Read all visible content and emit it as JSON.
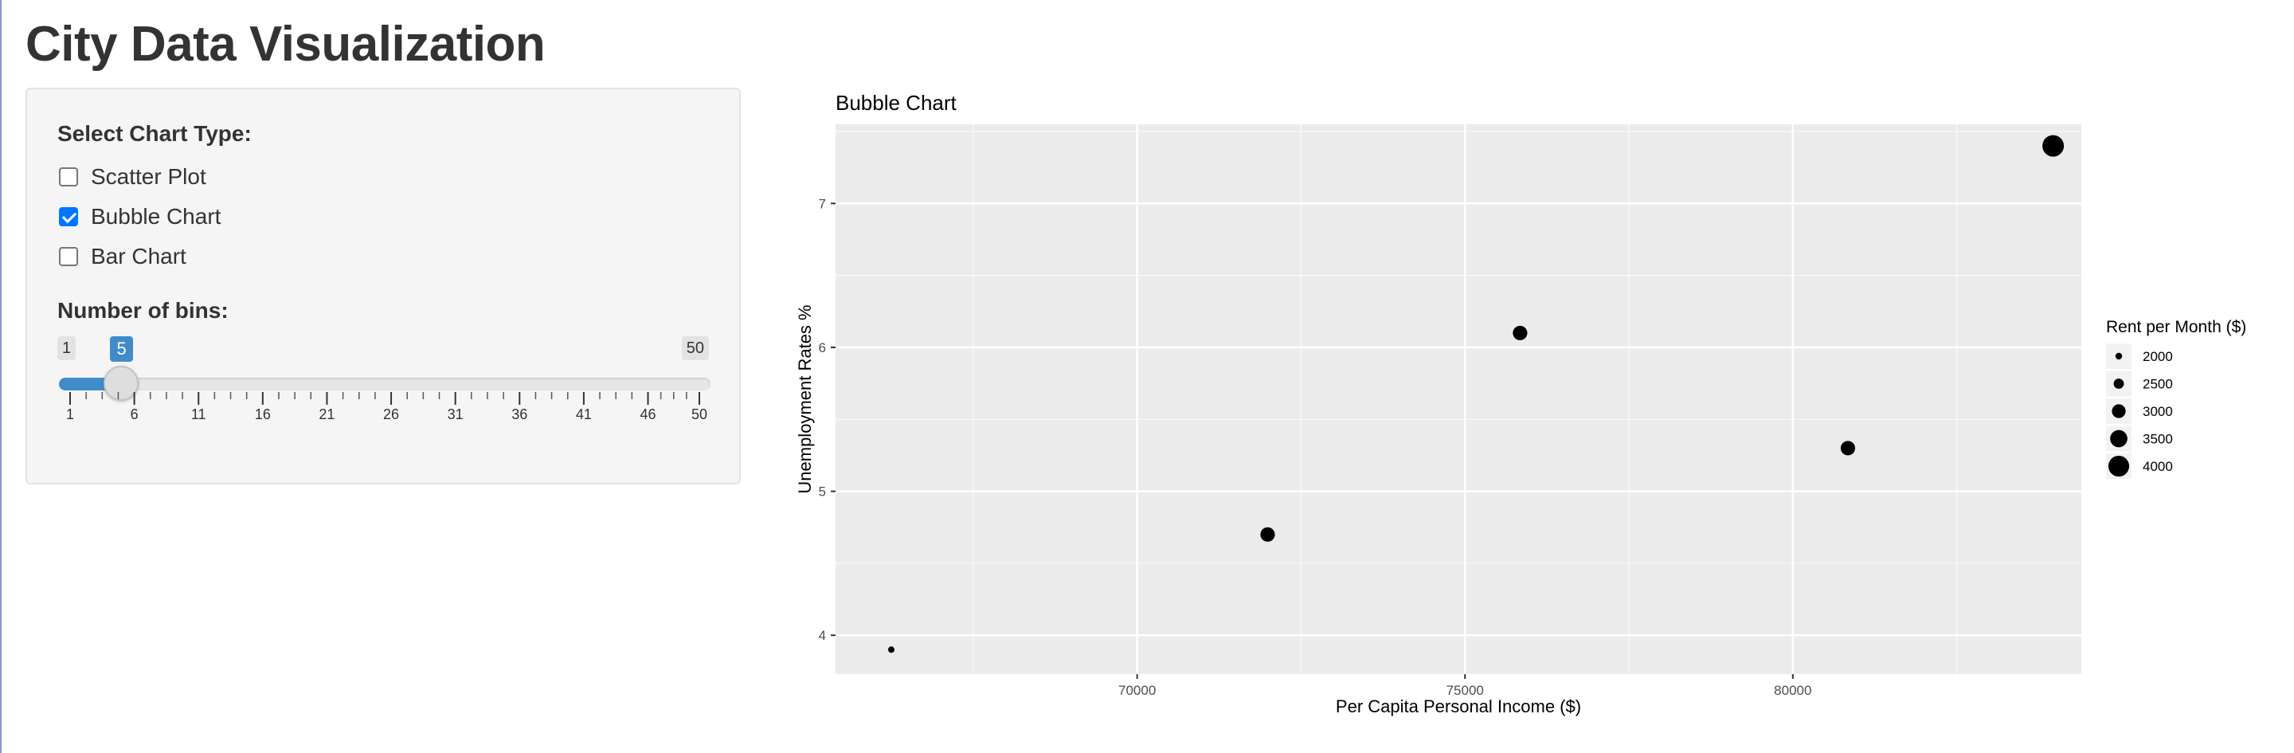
{
  "app": {
    "title": "City Data Visualization"
  },
  "sidebar": {
    "chart_type_label": "Select Chart Type:",
    "chart_types": [
      {
        "label": "Scatter Plot",
        "checked": false
      },
      {
        "label": "Bubble Chart",
        "checked": true
      },
      {
        "label": "Bar Chart",
        "checked": false
      }
    ],
    "bins": {
      "label": "Number of bins:",
      "min": 1,
      "max": 50,
      "value": 5,
      "min_label": "1",
      "max_label": "50",
      "value_label": "5",
      "tick_labels": [
        "1",
        "6",
        "11",
        "16",
        "21",
        "26",
        "31",
        "36",
        "41",
        "46",
        "50"
      ]
    }
  },
  "chart_data": {
    "type": "scatter",
    "title": "Bubble Chart",
    "xlabel": "Per Capita Personal Income ($)",
    "ylabel": "Unemployment Rates %",
    "xlim": [
      65400,
      84400
    ],
    "ylim": [
      3.73,
      7.55
    ],
    "x_ticks": [
      70000,
      75000,
      80000
    ],
    "x_tick_labels": [
      "70000",
      "75000",
      "80000"
    ],
    "y_ticks": [
      4,
      5,
      6,
      7
    ],
    "y_tick_labels": [
      "4",
      "5",
      "6",
      "7"
    ],
    "grid": true,
    "panel_color": "#ebebeb",
    "point_color": "#000000",
    "size_legend": {
      "title": "Rent per Month ($)",
      "placement": "right",
      "entries": [
        {
          "value": 2000,
          "label": "2000"
        },
        {
          "value": 2500,
          "label": "2500"
        },
        {
          "value": 3000,
          "label": "3000"
        },
        {
          "value": 3500,
          "label": "3500"
        },
        {
          "value": 4000,
          "label": "4000"
        }
      ]
    },
    "points": [
      {
        "x": 66250,
        "y": 3.9,
        "size": 1950
      },
      {
        "x": 71990,
        "y": 4.7,
        "size": 3100
      },
      {
        "x": 75840,
        "y": 6.1,
        "size": 3100
      },
      {
        "x": 80840,
        "y": 5.3,
        "size": 3100
      },
      {
        "x": 83970,
        "y": 7.4,
        "size": 4100
      }
    ]
  }
}
